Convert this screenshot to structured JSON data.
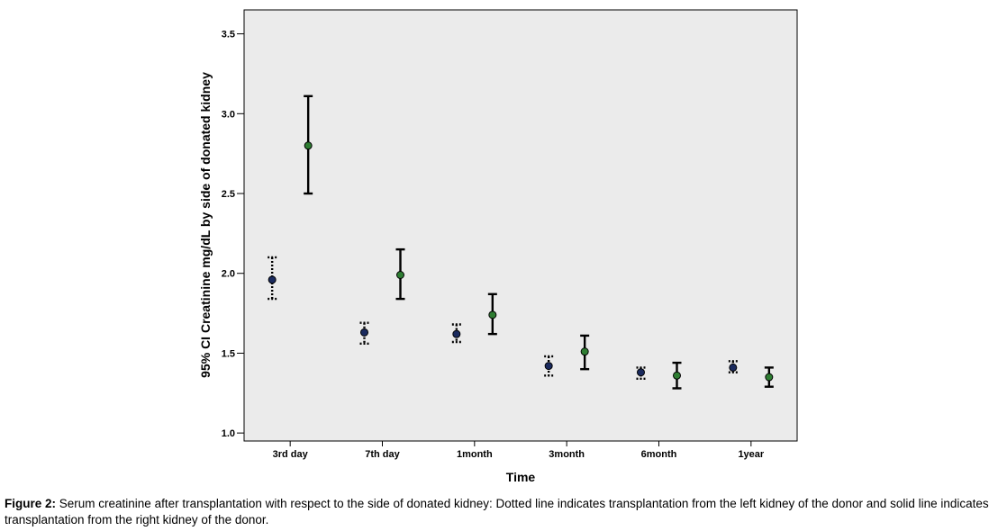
{
  "chart_data": {
    "type": "errorbar",
    "ylabel": "95% CI Creatinine mg/dL by side of donated kidney",
    "xlabel": "Time",
    "ylim": [
      0.95,
      3.65
    ],
    "yticks": [
      "1.0",
      "1.5",
      "2.0",
      "2.5",
      "3.0",
      "3.5"
    ],
    "ytick_values": [
      1.0,
      1.5,
      2.0,
      2.5,
      3.0,
      3.5
    ],
    "categories": [
      "3rd day",
      "7th day",
      "1month",
      "3month",
      "6month",
      "1year"
    ],
    "series": [
      {
        "line_style": "dotted",
        "marker_color": "#1a2a5e",
        "mean": [
          1.96,
          1.63,
          1.62,
          1.42,
          1.38,
          1.41
        ],
        "lower": [
          1.84,
          1.56,
          1.57,
          1.36,
          1.34,
          1.38
        ],
        "upper": [
          2.1,
          1.69,
          1.68,
          1.48,
          1.41,
          1.45
        ]
      },
      {
        "line_style": "solid",
        "marker_color": "#2e7d32",
        "mean": [
          2.8,
          1.99,
          1.74,
          1.51,
          1.36,
          1.35
        ],
        "lower": [
          2.5,
          1.84,
          1.62,
          1.4,
          1.28,
          1.29
        ],
        "upper": [
          3.11,
          2.15,
          1.87,
          1.61,
          1.44,
          1.41
        ]
      }
    ],
    "plot_background": "#ebebeb",
    "grid": false
  },
  "caption": {
    "label": "Figure 2:",
    "text": " Serum creatinine after transplantation with respect to the side of donated kidney: Dotted line indicates transplantation from the left kidney of the donor and solid line indicates transplantation from the right kidney of the donor."
  }
}
